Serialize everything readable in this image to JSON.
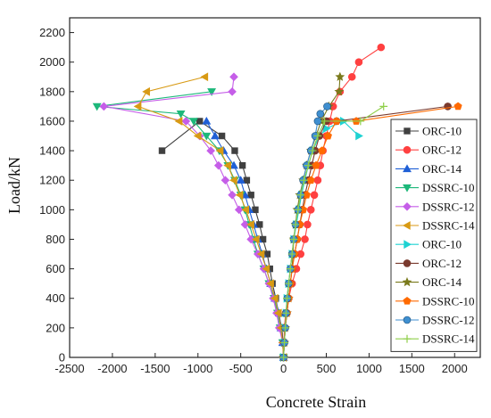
{
  "chart_data": {
    "type": "line",
    "xlabel": "Concrete Strain",
    "ylabel": "Load/kN",
    "xlim": [
      -2500,
      2300
    ],
    "ylim": [
      0,
      2300
    ],
    "xticks": [
      -2500,
      -2000,
      -1500,
      -1000,
      -500,
      0,
      500,
      1000,
      1500,
      2000
    ],
    "yticks": [
      0,
      200,
      400,
      600,
      800,
      1000,
      1200,
      1400,
      1600,
      1800,
      2000,
      2200
    ],
    "grid": false,
    "legend_position": "right",
    "series": [
      {
        "name": "ORC-10",
        "color": "#404040",
        "marker": "square",
        "x": [
          0,
          -5,
          -20,
          -60,
          -90,
          -130,
          -160,
          -190,
          -240,
          -280,
          -330,
          -380,
          -430,
          -480,
          -570,
          -720,
          -980,
          -1420
        ],
        "y": [
          0,
          100,
          200,
          300,
          400,
          500,
          600,
          700,
          800,
          900,
          1000,
          1100,
          1200,
          1300,
          1400,
          1500,
          1600,
          1400
        ]
      },
      {
        "name": "ORC-12",
        "color": "#ff4040",
        "marker": "circle",
        "x": [
          0,
          5,
          10,
          25,
          60,
          100,
          150,
          200,
          250,
          280,
          320,
          360,
          400,
          430,
          460,
          500,
          540,
          580,
          660,
          800,
          880,
          1140
        ],
        "y": [
          0,
          100,
          200,
          300,
          400,
          500,
          600,
          700,
          800,
          900,
          1000,
          1100,
          1200,
          1300,
          1400,
          1500,
          1600,
          1700,
          1800,
          1900,
          2000,
          2100
        ]
      },
      {
        "name": "ORC-14",
        "color": "#1f5fd6",
        "marker": "triangle",
        "x": [
          0,
          -10,
          -30,
          -50,
          -100,
          -150,
          -200,
          -250,
          -300,
          -350,
          -400,
          -450,
          -500,
          -580,
          -700,
          -800,
          -900
        ],
        "y": [
          0,
          100,
          200,
          300,
          400,
          500,
          600,
          700,
          800,
          900,
          1000,
          1100,
          1200,
          1300,
          1400,
          1500,
          1600
        ]
      },
      {
        "name": "DSSRC-10",
        "color": "#1db87a",
        "marker": "triangle-down",
        "x": [
          0,
          -10,
          -40,
          -70,
          -110,
          -170,
          -230,
          -300,
          -350,
          -400,
          -450,
          -500,
          -570,
          -650,
          -750,
          -900,
          -1050,
          -1200,
          -2180,
          -840
        ],
        "y": [
          0,
          100,
          200,
          300,
          400,
          500,
          600,
          700,
          800,
          900,
          1000,
          1100,
          1200,
          1300,
          1400,
          1500,
          1600,
          1650,
          1700,
          1800
        ]
      },
      {
        "name": "DSSRC-12",
        "color": "#c55ee8",
        "marker": "diamond",
        "x": [
          0,
          -10,
          -50,
          -80,
          -120,
          -170,
          -230,
          -300,
          -380,
          -450,
          -520,
          -600,
          -680,
          -760,
          -850,
          -980,
          -1140,
          -2100,
          -600,
          -580
        ],
        "y": [
          0,
          100,
          200,
          300,
          400,
          500,
          600,
          700,
          800,
          900,
          1000,
          1100,
          1200,
          1300,
          1400,
          1500,
          1600,
          1700,
          1800,
          1900
        ]
      },
      {
        "name": "DSSRC-14",
        "color": "#d89a14",
        "marker": "triangle-left",
        "x": [
          0,
          -10,
          -30,
          -60,
          -100,
          -150,
          -200,
          -260,
          -320,
          -380,
          -440,
          -510,
          -580,
          -650,
          -740,
          -1000,
          -1220,
          -1700,
          -1600,
          -920
        ],
        "y": [
          0,
          100,
          200,
          300,
          400,
          500,
          600,
          700,
          800,
          900,
          1000,
          1100,
          1200,
          1300,
          1400,
          1500,
          1600,
          1700,
          1800,
          1900
        ]
      },
      {
        "name": "ORC-10",
        "color": "#1ed2d2",
        "marker": "triangle-right",
        "x": [
          0,
          10,
          20,
          30,
          40,
          60,
          80,
          100,
          120,
          150,
          180,
          210,
          250,
          290,
          340,
          420,
          500,
          700,
          880
        ],
        "y": [
          0,
          100,
          200,
          300,
          400,
          500,
          600,
          700,
          800,
          900,
          1000,
          1100,
          1200,
          1300,
          1400,
          1500,
          1550,
          1600,
          1500
        ]
      },
      {
        "name": "ORC-12",
        "color": "#7a3a2e",
        "marker": "circle",
        "x": [
          0,
          10,
          20,
          40,
          60,
          80,
          100,
          130,
          160,
          190,
          220,
          250,
          290,
          330,
          370,
          420,
          500,
          620,
          1920
        ],
        "y": [
          0,
          100,
          200,
          300,
          400,
          500,
          600,
          700,
          800,
          900,
          1000,
          1100,
          1200,
          1300,
          1400,
          1500,
          1600,
          1600,
          1700
        ]
      },
      {
        "name": "ORC-14",
        "color": "#7a7a1c",
        "marker": "star",
        "x": [
          0,
          10,
          20,
          40,
          60,
          80,
          100,
          110,
          120,
          140,
          160,
          190,
          230,
          270,
          320,
          380,
          440,
          530,
          650,
          660
        ],
        "y": [
          0,
          100,
          200,
          300,
          400,
          500,
          600,
          700,
          800,
          900,
          1000,
          1100,
          1200,
          1300,
          1400,
          1500,
          1600,
          1700,
          1800,
          1900
        ]
      },
      {
        "name": "DSSRC-10",
        "color": "#ff6a00",
        "marker": "pentagon",
        "x": [
          0,
          10,
          20,
          40,
          60,
          80,
          100,
          130,
          160,
          190,
          230,
          270,
          320,
          380,
          450,
          520,
          620,
          850,
          2040
        ],
        "y": [
          0,
          100,
          200,
          300,
          400,
          500,
          600,
          700,
          800,
          900,
          1000,
          1100,
          1200,
          1300,
          1400,
          1500,
          1600,
          1600,
          1700
        ]
      },
      {
        "name": "DSSRC-12",
        "color": "#3f8fd0",
        "marker": "ball",
        "x": [
          0,
          10,
          20,
          30,
          45,
          60,
          80,
          100,
          120,
          140,
          170,
          200,
          230,
          270,
          320,
          370,
          400,
          430,
          510
        ],
        "y": [
          0,
          100,
          200,
          300,
          400,
          500,
          600,
          700,
          800,
          900,
          1000,
          1100,
          1200,
          1300,
          1400,
          1500,
          1600,
          1650,
          1700
        ]
      },
      {
        "name": "DSSRC-14",
        "color": "#8fcf4a",
        "marker": "plus",
        "x": [
          0,
          10,
          20,
          30,
          40,
          60,
          80,
          100,
          120,
          140,
          170,
          200,
          240,
          290,
          340,
          400,
          480,
          900,
          1170
        ],
        "y": [
          0,
          100,
          200,
          300,
          400,
          500,
          600,
          700,
          800,
          900,
          1000,
          1100,
          1200,
          1300,
          1400,
          1500,
          1600,
          1600,
          1700
        ]
      }
    ]
  }
}
